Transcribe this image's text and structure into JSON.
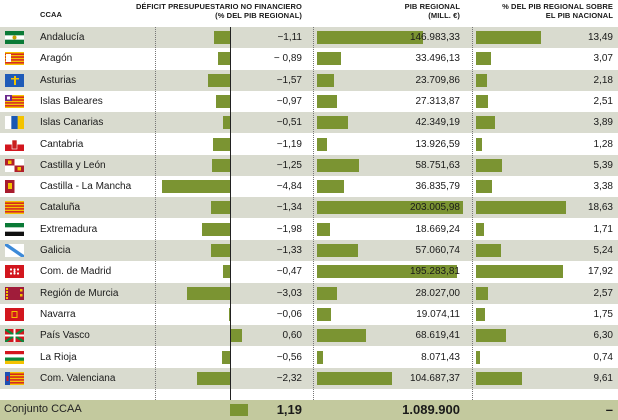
{
  "headers": {
    "ccaa": "CCAA",
    "deficit_line1": "DÉFICIT PRESUPUESTARIO NO FINANCIERO",
    "deficit_line2": "(% DEL PIB REGIONAL)",
    "pib_line1": "PIB REGIONAL",
    "pib_line2": "(MILL. €)",
    "pct_line1": "% DEL PIB REGIONAL SOBRE",
    "pct_line2": "EL PIB NACIONAL"
  },
  "colors": {
    "bar": "#7b9432",
    "stripe": "#d9dbcf",
    "total_band": "#c3c99e"
  },
  "chart_data": {
    "type": "table",
    "columns": [
      "CCAA",
      "DÉFICIT PRESUPUESTARIO NO FINANCIERO (% DEL PIB REGIONAL)",
      "PIB REGIONAL (MILL. €)",
      "% DEL PIB REGIONAL SOBRE EL PIB NACIONAL"
    ],
    "rows": [
      {
        "ccaa": "Andalucía",
        "flag": "flag-andalucia",
        "deficit": -1.11,
        "deficit_label": "−1,11",
        "pib": 146983.33,
        "pib_label": "146.983,33",
        "pct": 13.49,
        "pct_label": "13,49"
      },
      {
        "ccaa": "Aragón",
        "flag": "flag-aragon",
        "deficit": -0.89,
        "deficit_label": "− 0,89",
        "pib": 33496.13,
        "pib_label": "33.496,13",
        "pct": 3.07,
        "pct_label": "3,07"
      },
      {
        "ccaa": "Asturias",
        "flag": "flag-asturias",
        "deficit": -1.57,
        "deficit_label": "−1,57",
        "pib": 23709.86,
        "pib_label": "23.709,86",
        "pct": 2.18,
        "pct_label": "2,18"
      },
      {
        "ccaa": "Islas Baleares",
        "flag": "flag-islas-baleares",
        "deficit": -0.97,
        "deficit_label": "−0,97",
        "pib": 27313.87,
        "pib_label": "27.313,87",
        "pct": 2.51,
        "pct_label": "2,51"
      },
      {
        "ccaa": "Islas Canarias",
        "flag": "flag-islas-canarias",
        "deficit": -0.51,
        "deficit_label": "−0,51",
        "pib": 42349.19,
        "pib_label": "42.349,19",
        "pct": 3.89,
        "pct_label": "3,89"
      },
      {
        "ccaa": "Cantabria",
        "flag": "flag-cantabria",
        "deficit": -1.19,
        "deficit_label": "−1,19",
        "pib": 13926.59,
        "pib_label": "13.926,59",
        "pct": 1.28,
        "pct_label": "1,28"
      },
      {
        "ccaa": "Castilla y León",
        "flag": "flag-castilla-y-leon",
        "deficit": -1.25,
        "deficit_label": "−1,25",
        "pib": 58751.63,
        "pib_label": "58.751,63",
        "pct": 5.39,
        "pct_label": "5,39"
      },
      {
        "ccaa": "Castilla - La Mancha",
        "flag": "flag-castilla-la-mancha",
        "deficit": -4.84,
        "deficit_label": "−4,84",
        "pib": 36835.79,
        "pib_label": "36.835,79",
        "pct": 3.38,
        "pct_label": "3,38"
      },
      {
        "ccaa": "Cataluña",
        "flag": "flag-cataluna",
        "deficit": -1.34,
        "deficit_label": "−1,34",
        "pib": 203005.98,
        "pib_label": "203.005,98",
        "pct": 18.63,
        "pct_label": "18,63"
      },
      {
        "ccaa": "Extremadura",
        "flag": "flag-extremadura",
        "deficit": -1.98,
        "deficit_label": "−1,98",
        "pib": 18669.24,
        "pib_label": "18.669,24",
        "pct": 1.71,
        "pct_label": "1,71"
      },
      {
        "ccaa": "Galicia",
        "flag": "flag-galicia",
        "deficit": -1.33,
        "deficit_label": "−1,33",
        "pib": 57060.74,
        "pib_label": "57.060,74",
        "pct": 5.24,
        "pct_label": "5,24"
      },
      {
        "ccaa": "Com. de Madrid",
        "flag": "flag-madrid",
        "deficit": -0.47,
        "deficit_label": "−0,47",
        "pib": 195283.81,
        "pib_label": "195.283,81",
        "pct": 17.92,
        "pct_label": "17,92"
      },
      {
        "ccaa": "Región de Murcia",
        "flag": "flag-murcia",
        "deficit": -3.03,
        "deficit_label": "−3,03",
        "pib": 28027.0,
        "pib_label": "28.027,00",
        "pct": 2.57,
        "pct_label": "2,57"
      },
      {
        "ccaa": "Navarra",
        "flag": "flag-navarra",
        "deficit": -0.06,
        "deficit_label": "−0,06",
        "pib": 19074.11,
        "pib_label": "19.074,11",
        "pct": 1.75,
        "pct_label": "1,75"
      },
      {
        "ccaa": "País Vasco",
        "flag": "flag-pais-vasco",
        "deficit": 0.6,
        "deficit_label": "0,60",
        "pib": 68619.41,
        "pib_label": "68.619,41",
        "pct": 6.3,
        "pct_label": "6,30"
      },
      {
        "ccaa": "La Rioja",
        "flag": "flag-la-rioja",
        "deficit": -0.56,
        "deficit_label": "−0,56",
        "pib": 8071.43,
        "pib_label": "8.071,43",
        "pct": 0.74,
        "pct_label": "0,74"
      },
      {
        "ccaa": "Com. Valenciana",
        "flag": "flag-valenciana",
        "deficit": -2.32,
        "deficit_label": "−2,32",
        "pib": 104687.37,
        "pib_label": "104.687,37",
        "pct": 9.61,
        "pct_label": "9,61"
      }
    ],
    "total": {
      "ccaa": "Conjunto CCAA",
      "deficit": 1.19,
      "deficit_label": "1,19",
      "pib": 1089900,
      "pib_label": "1.089.900",
      "pct_label": "–"
    },
    "deficit_scale": {
      "min": -4.84,
      "max": 0.6
    },
    "pib_scale": {
      "min": 0,
      "max": 203005.98
    },
    "pct_scale": {
      "min": 0,
      "max": 18.63
    }
  }
}
